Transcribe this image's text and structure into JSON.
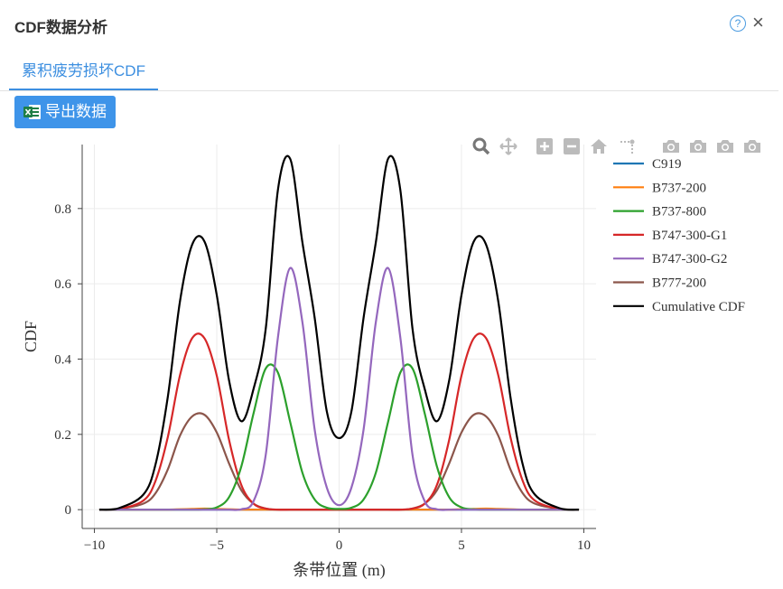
{
  "dialog": {
    "title": "CDF数据分析",
    "help": "?",
    "close": "×"
  },
  "tabs": [
    {
      "label": "累积疲劳损坏CDF"
    }
  ],
  "export_button": {
    "label": "导出数据"
  },
  "toolbar": {
    "icons": [
      "zoom-icon",
      "pan-icon",
      "zoom-in-icon",
      "zoom-out-icon",
      "home-icon",
      "spike-lines-icon",
      "camera-icon",
      "camera-icon",
      "camera-icon",
      "camera-icon"
    ]
  },
  "chart_data": {
    "type": "line",
    "title": "",
    "xlabel": "条带位置 (m)",
    "ylabel": "CDF",
    "xlim": [
      -10.5,
      10.5
    ],
    "ylim": [
      -0.05,
      0.97
    ],
    "xticks": [
      -10,
      -5,
      0,
      5,
      10
    ],
    "xtick_labels": [
      "−10",
      "−5",
      "0",
      "5",
      "10"
    ],
    "yticks": [
      0,
      0.2,
      0.4,
      0.6,
      0.8
    ],
    "ytick_labels": [
      "0",
      "0.2",
      "0.4",
      "0.6",
      "0.8"
    ],
    "grid": true,
    "legend_position": "right",
    "x": [
      -9.8,
      -9,
      -8,
      -7.5,
      -7,
      -6.5,
      -6,
      -5.5,
      -5,
      -4.5,
      -4,
      -3.5,
      -3,
      -2.5,
      -2,
      -1.5,
      -1,
      -0.5,
      0,
      0.5,
      1,
      1.5,
      2,
      2.5,
      3,
      3.5,
      4,
      4.5,
      5,
      5.5,
      6,
      6.5,
      7,
      7.5,
      8,
      9,
      9.8
    ],
    "series": [
      {
        "name": "C919",
        "color": "#1f77b4",
        "values": [
          0,
          0,
          0,
          0,
          0,
          0,
          0,
          0,
          0,
          0,
          0,
          0,
          0,
          0,
          0,
          0,
          0,
          0,
          0,
          0,
          0,
          0,
          0,
          0,
          0,
          0,
          0,
          0,
          0,
          0,
          0,
          0,
          0,
          0,
          0,
          0,
          0
        ]
      },
      {
        "name": "B737-200",
        "color": "#ff7f0e",
        "values": [
          0,
          0,
          0,
          0,
          0,
          0.001,
          0.002,
          0.003,
          0.002,
          0.001,
          0,
          0,
          0,
          0,
          0,
          0,
          0,
          0,
          0,
          0,
          0,
          0,
          0,
          0,
          0,
          0,
          0,
          0,
          0.001,
          0.002,
          0.003,
          0.002,
          0.001,
          0,
          0,
          0,
          0
        ]
      },
      {
        "name": "B737-800",
        "color": "#2ca02c",
        "values": [
          0,
          0,
          0,
          0,
          0,
          0,
          0,
          0.001,
          0.006,
          0.033,
          0.114,
          0.255,
          0.375,
          0.364,
          0.233,
          0.098,
          0.027,
          0.005,
          0.002,
          0.005,
          0.027,
          0.098,
          0.233,
          0.364,
          0.375,
          0.255,
          0.114,
          0.033,
          0.006,
          0.001,
          0,
          0,
          0,
          0,
          0,
          0,
          0
        ]
      },
      {
        "name": "B747-300-G1",
        "color": "#d62728",
        "values": [
          0,
          0.002,
          0.024,
          0.077,
          0.193,
          0.358,
          0.456,
          0.455,
          0.356,
          0.186,
          0.066,
          0.016,
          0.003,
          0,
          0,
          0,
          0,
          0,
          0,
          0,
          0,
          0,
          0,
          0,
          0.003,
          0.016,
          0.066,
          0.186,
          0.356,
          0.455,
          0.456,
          0.358,
          0.193,
          0.077,
          0.024,
          0.002,
          0
        ]
      },
      {
        "name": "B747-300-G2",
        "color": "#9467bd",
        "values": [
          0,
          0,
          0,
          0,
          0,
          0,
          0,
          0,
          0,
          0,
          0.001,
          0.022,
          0.145,
          0.458,
          0.642,
          0.498,
          0.213,
          0.058,
          0.012,
          0.058,
          0.213,
          0.498,
          0.642,
          0.458,
          0.145,
          0.022,
          0.001,
          0,
          0,
          0,
          0,
          0,
          0,
          0,
          0,
          0,
          0
        ]
      },
      {
        "name": "B777-200",
        "color": "#8c564b",
        "values": [
          0,
          0.002,
          0.016,
          0.044,
          0.107,
          0.197,
          0.248,
          0.252,
          0.205,
          0.123,
          0.052,
          0.016,
          0.003,
          0,
          0,
          0,
          0,
          0,
          0,
          0,
          0,
          0,
          0,
          0,
          0.003,
          0.016,
          0.052,
          0.123,
          0.205,
          0.252,
          0.248,
          0.197,
          0.107,
          0.044,
          0.016,
          0.002,
          0
        ]
      },
      {
        "name": "Cumulative CDF",
        "color": "#000000",
        "values": [
          0,
          0.004,
          0.04,
          0.121,
          0.3,
          0.555,
          0.705,
          0.712,
          0.57,
          0.344,
          0.235,
          0.32,
          0.48,
          0.85,
          0.932,
          0.71,
          0.51,
          0.26,
          0.19,
          0.26,
          0.51,
          0.71,
          0.932,
          0.85,
          0.48,
          0.32,
          0.235,
          0.344,
          0.57,
          0.712,
          0.705,
          0.555,
          0.3,
          0.121,
          0.04,
          0.004,
          0
        ]
      }
    ]
  }
}
